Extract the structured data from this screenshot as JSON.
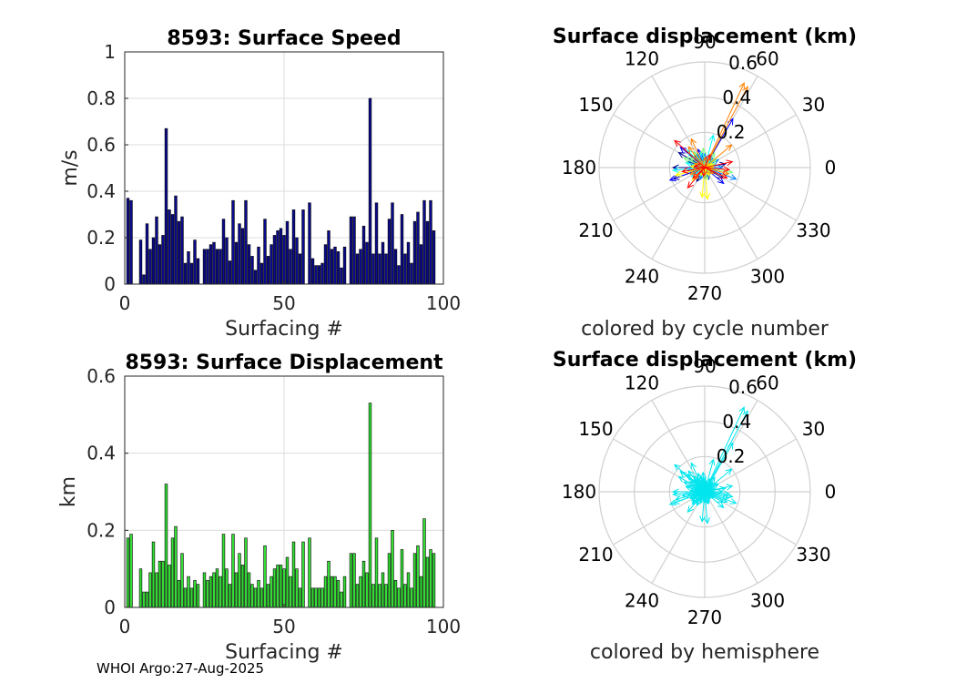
{
  "footer": "WHOI Argo:27-Aug-2025",
  "chart_data": [
    {
      "type": "bar",
      "title": "8593: Surface Speed",
      "xlabel": "Surfacing #",
      "ylabel": "m/s",
      "xlim": [
        0,
        100
      ],
      "ylim": [
        0,
        1
      ],
      "xticks": [
        0,
        50,
        100
      ],
      "yticks": [
        0,
        0.2,
        0.4,
        0.6,
        0.8,
        1
      ],
      "yticklabels": [
        "0",
        "0.2",
        "0.4",
        "0.6",
        "0.8",
        "1"
      ],
      "grid": true,
      "color": "#0a0a8c",
      "x": [
        1,
        2,
        3,
        4,
        5,
        6,
        7,
        8,
        9,
        10,
        11,
        12,
        13,
        14,
        15,
        16,
        17,
        18,
        19,
        20,
        21,
        22,
        23,
        24,
        25,
        26,
        27,
        28,
        29,
        30,
        31,
        32,
        33,
        34,
        35,
        36,
        37,
        38,
        39,
        40,
        41,
        42,
        43,
        44,
        45,
        46,
        47,
        48,
        49,
        50,
        51,
        52,
        53,
        54,
        55,
        56,
        57,
        58,
        59,
        60,
        61,
        62,
        63,
        64,
        65,
        66,
        67,
        68,
        69,
        70,
        71,
        72,
        73,
        74,
        75,
        76,
        77,
        78,
        79,
        80,
        81,
        82,
        83,
        84,
        85,
        86,
        87,
        88,
        89,
        90,
        91,
        92,
        93,
        94,
        95,
        96,
        97
      ],
      "values": [
        0.37,
        0.36,
        0.0,
        0.0,
        0.19,
        0.04,
        0.26,
        0.15,
        0.2,
        0.29,
        0.17,
        0.21,
        0.67,
        0.32,
        0.3,
        0.38,
        0.27,
        0.29,
        0.09,
        0.14,
        0.09,
        0.19,
        0.11,
        0.0,
        0.15,
        0.15,
        0.17,
        0.18,
        0.15,
        0.15,
        0.28,
        0.2,
        0.1,
        0.36,
        0.18,
        0.26,
        0.24,
        0.36,
        0.17,
        0.12,
        0.06,
        0.16,
        0.09,
        0.28,
        0.12,
        0.17,
        0.21,
        0.23,
        0.24,
        0.21,
        0.27,
        0.15,
        0.32,
        0.2,
        0.13,
        0.32,
        0.0,
        0.35,
        0.11,
        0.08,
        0.08,
        0.09,
        0.17,
        0.23,
        0.15,
        0.16,
        0.14,
        0.07,
        0.16,
        0.0,
        0.29,
        0.29,
        0.13,
        0.15,
        0.25,
        0.18,
        0.8,
        0.13,
        0.35,
        0.13,
        0.18,
        0.13,
        0.28,
        0.35,
        0.15,
        0.08,
        0.3,
        0.13,
        0.18,
        0.09,
        0.27,
        0.31,
        0.17,
        0.36,
        0.27,
        0.36,
        0.23
      ]
    },
    {
      "type": "bar",
      "title": "8593: Surface Displacement",
      "xlabel": "Surfacing #",
      "ylabel": "km",
      "xlim": [
        0,
        100
      ],
      "ylim": [
        0,
        0.6
      ],
      "xticks": [
        0,
        50,
        100
      ],
      "yticks": [
        0,
        0.2,
        0.4,
        0.6
      ],
      "yticklabels": [
        "0",
        "0.2",
        "0.4",
        "0.6"
      ],
      "grid": true,
      "color": "#33dd33",
      "x": [
        1,
        2,
        3,
        4,
        5,
        6,
        7,
        8,
        9,
        10,
        11,
        12,
        13,
        14,
        15,
        16,
        17,
        18,
        19,
        20,
        21,
        22,
        23,
        24,
        25,
        26,
        27,
        28,
        29,
        30,
        31,
        32,
        33,
        34,
        35,
        36,
        37,
        38,
        39,
        40,
        41,
        42,
        43,
        44,
        45,
        46,
        47,
        48,
        49,
        50,
        51,
        52,
        53,
        54,
        55,
        56,
        57,
        58,
        59,
        60,
        61,
        62,
        63,
        64,
        65,
        66,
        67,
        68,
        69,
        70,
        71,
        72,
        73,
        74,
        75,
        76,
        77,
        78,
        79,
        80,
        81,
        82,
        83,
        84,
        85,
        86,
        87,
        88,
        89,
        90,
        91,
        92,
        93,
        94,
        95,
        96,
        97
      ],
      "values": [
        0.18,
        0.19,
        0.0,
        0.0,
        0.1,
        0.04,
        0.04,
        0.09,
        0.17,
        0.09,
        0.12,
        0.12,
        0.32,
        0.11,
        0.18,
        0.21,
        0.07,
        0.14,
        0.05,
        0.08,
        0.05,
        0.07,
        0.06,
        0.0,
        0.09,
        0.07,
        0.08,
        0.09,
        0.1,
        0.08,
        0.19,
        0.1,
        0.06,
        0.19,
        0.09,
        0.14,
        0.11,
        0.18,
        0.09,
        0.06,
        0.05,
        0.07,
        0.05,
        0.16,
        0.06,
        0.08,
        0.1,
        0.11,
        0.11,
        0.1,
        0.13,
        0.08,
        0.17,
        0.1,
        0.05,
        0.17,
        0.0,
        0.18,
        0.05,
        0.05,
        0.05,
        0.05,
        0.08,
        0.12,
        0.08,
        0.08,
        0.07,
        0.04,
        0.08,
        0.0,
        0.14,
        0.14,
        0.06,
        0.08,
        0.12,
        0.09,
        0.53,
        0.06,
        0.18,
        0.06,
        0.09,
        0.06,
        0.14,
        0.2,
        0.07,
        0.05,
        0.15,
        0.06,
        0.09,
        0.05,
        0.14,
        0.16,
        0.08,
        0.23,
        0.13,
        0.15,
        0.14
      ]
    },
    {
      "type": "polar-compass",
      "title": "Surface displacement (km)",
      "xlabel": "colored by cycle number",
      "rlim": [
        0,
        0.6
      ],
      "rticks": [
        0.2,
        0.4,
        0.6
      ],
      "rticklabels": [
        "0.2",
        "0.4",
        "0.6"
      ],
      "thetaticks": [
        0,
        30,
        60,
        90,
        120,
        150,
        180,
        210,
        240,
        270,
        300,
        330
      ],
      "thetaticklabels": [
        "0",
        "30",
        "60",
        "90",
        "120",
        "150",
        "180",
        "210",
        "240",
        "270",
        "300",
        "330"
      ],
      "color_mode": "cycle",
      "colormap": [
        "#00008f",
        "#0000ff",
        "#0080ff",
        "#00ffff",
        "#80ff80",
        "#ffff00",
        "#ff8000",
        "#ff0000",
        "#800000"
      ],
      "vectors": [
        {
          "theta": 180,
          "r": 0.18
        },
        {
          "theta": 200,
          "r": 0.19
        },
        {
          "theta": 160,
          "r": 0.1
        },
        {
          "theta": 60,
          "r": 0.04
        },
        {
          "theta": 20,
          "r": 0.04
        },
        {
          "theta": 130,
          "r": 0.09
        },
        {
          "theta": 150,
          "r": 0.17
        },
        {
          "theta": 240,
          "r": 0.09
        },
        {
          "theta": 330,
          "r": 0.12
        },
        {
          "theta": 10,
          "r": 0.12
        },
        {
          "theta": 60,
          "r": 0.32
        },
        {
          "theta": 110,
          "r": 0.11
        },
        {
          "theta": 140,
          "r": 0.18
        },
        {
          "theta": 200,
          "r": 0.21
        },
        {
          "theta": 290,
          "r": 0.07
        },
        {
          "theta": 320,
          "r": 0.14
        },
        {
          "theta": 80,
          "r": 0.05
        },
        {
          "theta": 100,
          "r": 0.08
        },
        {
          "theta": 170,
          "r": 0.05
        },
        {
          "theta": 250,
          "r": 0.07
        },
        {
          "theta": 270,
          "r": 0.06
        },
        {
          "theta": 30,
          "r": 0.09
        },
        {
          "theta": 50,
          "r": 0.07
        },
        {
          "theta": 90,
          "r": 0.08
        },
        {
          "theta": 120,
          "r": 0.09
        },
        {
          "theta": 190,
          "r": 0.1
        },
        {
          "theta": 210,
          "r": 0.08
        },
        {
          "theta": 340,
          "r": 0.19
        },
        {
          "theta": 0,
          "r": 0.1
        },
        {
          "theta": 45,
          "r": 0.06
        },
        {
          "theta": 75,
          "r": 0.19
        },
        {
          "theta": 105,
          "r": 0.09
        },
        {
          "theta": 135,
          "r": 0.14
        },
        {
          "theta": 165,
          "r": 0.11
        },
        {
          "theta": 185,
          "r": 0.18
        },
        {
          "theta": 215,
          "r": 0.09
        },
        {
          "theta": 235,
          "r": 0.06
        },
        {
          "theta": 260,
          "r": 0.05
        },
        {
          "theta": 285,
          "r": 0.07
        },
        {
          "theta": 310,
          "r": 0.05
        },
        {
          "theta": 350,
          "r": 0.16
        },
        {
          "theta": 15,
          "r": 0.06
        },
        {
          "theta": 35,
          "r": 0.08
        },
        {
          "theta": 55,
          "r": 0.1
        },
        {
          "theta": 95,
          "r": 0.11
        },
        {
          "theta": 125,
          "r": 0.11
        },
        {
          "theta": 145,
          "r": 0.1
        },
        {
          "theta": 155,
          "r": 0.13
        },
        {
          "theta": 175,
          "r": 0.08
        },
        {
          "theta": 195,
          "r": 0.17
        },
        {
          "theta": 225,
          "r": 0.1
        },
        {
          "theta": 245,
          "r": 0.05
        },
        {
          "theta": 265,
          "r": 0.17
        },
        {
          "theta": 275,
          "r": 0.18
        },
        {
          "theta": 300,
          "r": 0.05
        },
        {
          "theta": 5,
          "r": 0.05
        },
        {
          "theta": 25,
          "r": 0.05
        },
        {
          "theta": 65,
          "r": 0.53
        },
        {
          "theta": 85,
          "r": 0.06
        },
        {
          "theta": 115,
          "r": 0.18
        },
        {
          "theta": 158,
          "r": 0.06
        },
        {
          "theta": 205,
          "r": 0.09
        },
        {
          "theta": 325,
          "r": 0.06
        },
        {
          "theta": 345,
          "r": 0.14
        },
        {
          "theta": 40,
          "r": 0.2
        },
        {
          "theta": 62,
          "r": 0.52
        },
        {
          "theta": 128,
          "r": 0.15
        },
        {
          "theta": 172,
          "r": 0.06
        },
        {
          "theta": 222,
          "r": 0.09
        },
        {
          "theta": 262,
          "r": 0.05
        },
        {
          "theta": 335,
          "r": 0.14
        },
        {
          "theta": 12,
          "r": 0.16
        },
        {
          "theta": 68,
          "r": 0.08
        },
        {
          "theta": 138,
          "r": 0.23
        },
        {
          "theta": 190,
          "r": 0.13
        },
        {
          "theta": 230,
          "r": 0.15
        },
        {
          "theta": 355,
          "r": 0.14
        }
      ]
    },
    {
      "type": "polar-compass",
      "title": "Surface displacement (km)",
      "xlabel": "colored by hemisphere",
      "rlim": [
        0,
        0.6
      ],
      "rticks": [
        0.2,
        0.4,
        0.6
      ],
      "rticklabels": [
        "0.2",
        "0.4",
        "0.6"
      ],
      "thetaticks": [
        0,
        30,
        60,
        90,
        120,
        150,
        180,
        210,
        240,
        270,
        300,
        330
      ],
      "thetaticklabels": [
        "0",
        "30",
        "60",
        "90",
        "120",
        "150",
        "180",
        "210",
        "240",
        "270",
        "300",
        "330"
      ],
      "color_mode": "single",
      "color": "#00e5ee",
      "vectors_ref": 2
    }
  ]
}
